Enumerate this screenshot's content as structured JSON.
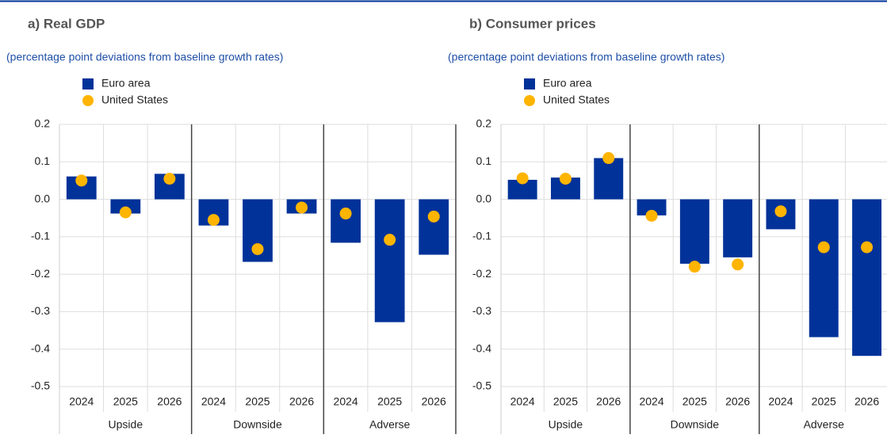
{
  "chart_data": [
    {
      "type": "bar",
      "title": "a) Real GDP",
      "subtitle": "(percentage point deviations from baseline growth rates)",
      "categories": [
        "2024",
        "2025",
        "2026",
        "2024",
        "2025",
        "2026",
        "2024",
        "2025",
        "2026"
      ],
      "groups": [
        "Upside",
        "Downside",
        "Adverse"
      ],
      "series": [
        {
          "name": "Euro area",
          "color": "#003299",
          "marker": "bar",
          "values": [
            0.061,
            -0.038,
            0.068,
            -0.07,
            -0.167,
            -0.038,
            -0.116,
            -0.328,
            -0.148
          ]
        },
        {
          "name": "United States",
          "color": "#ffb400",
          "marker": "dot",
          "values": [
            0.05,
            -0.035,
            0.055,
            -0.055,
            -0.133,
            -0.022,
            -0.038,
            -0.108,
            -0.046
          ]
        }
      ],
      "ylim": [
        -0.5,
        0.2
      ],
      "yticks": [
        0.2,
        0.1,
        {
          "value": 0,
          "label": "0.0"
        },
        -0.1,
        -0.2,
        -0.3,
        -0.4,
        -0.5
      ],
      "grid": true,
      "legend": "top-left"
    },
    {
      "type": "bar",
      "title": "b) Consumer prices",
      "subtitle": "(percentage point deviations from baseline growth rates)",
      "categories": [
        "2024",
        "2025",
        "2026",
        "2024",
        "2025",
        "2026",
        "2024",
        "2025",
        "2026"
      ],
      "groups": [
        "Upside",
        "Downside",
        "Adverse"
      ],
      "series": [
        {
          "name": "Euro area",
          "color": "#003299",
          "marker": "bar",
          "values": [
            0.052,
            0.058,
            0.11,
            -0.043,
            -0.172,
            -0.155,
            -0.08,
            -0.368,
            -0.418
          ]
        },
        {
          "name": "United States",
          "color": "#ffb400",
          "marker": "dot",
          "values": [
            0.056,
            0.055,
            0.11,
            -0.044,
            -0.18,
            -0.174,
            -0.032,
            -0.128,
            -0.128
          ]
        }
      ],
      "ylim": [
        -0.5,
        0.2
      ],
      "yticks": [
        0.2,
        0.1,
        {
          "value": 0,
          "label": "0.0"
        },
        -0.1,
        -0.2,
        -0.3,
        -0.4,
        -0.5
      ],
      "grid": true,
      "legend": "top-left"
    }
  ]
}
